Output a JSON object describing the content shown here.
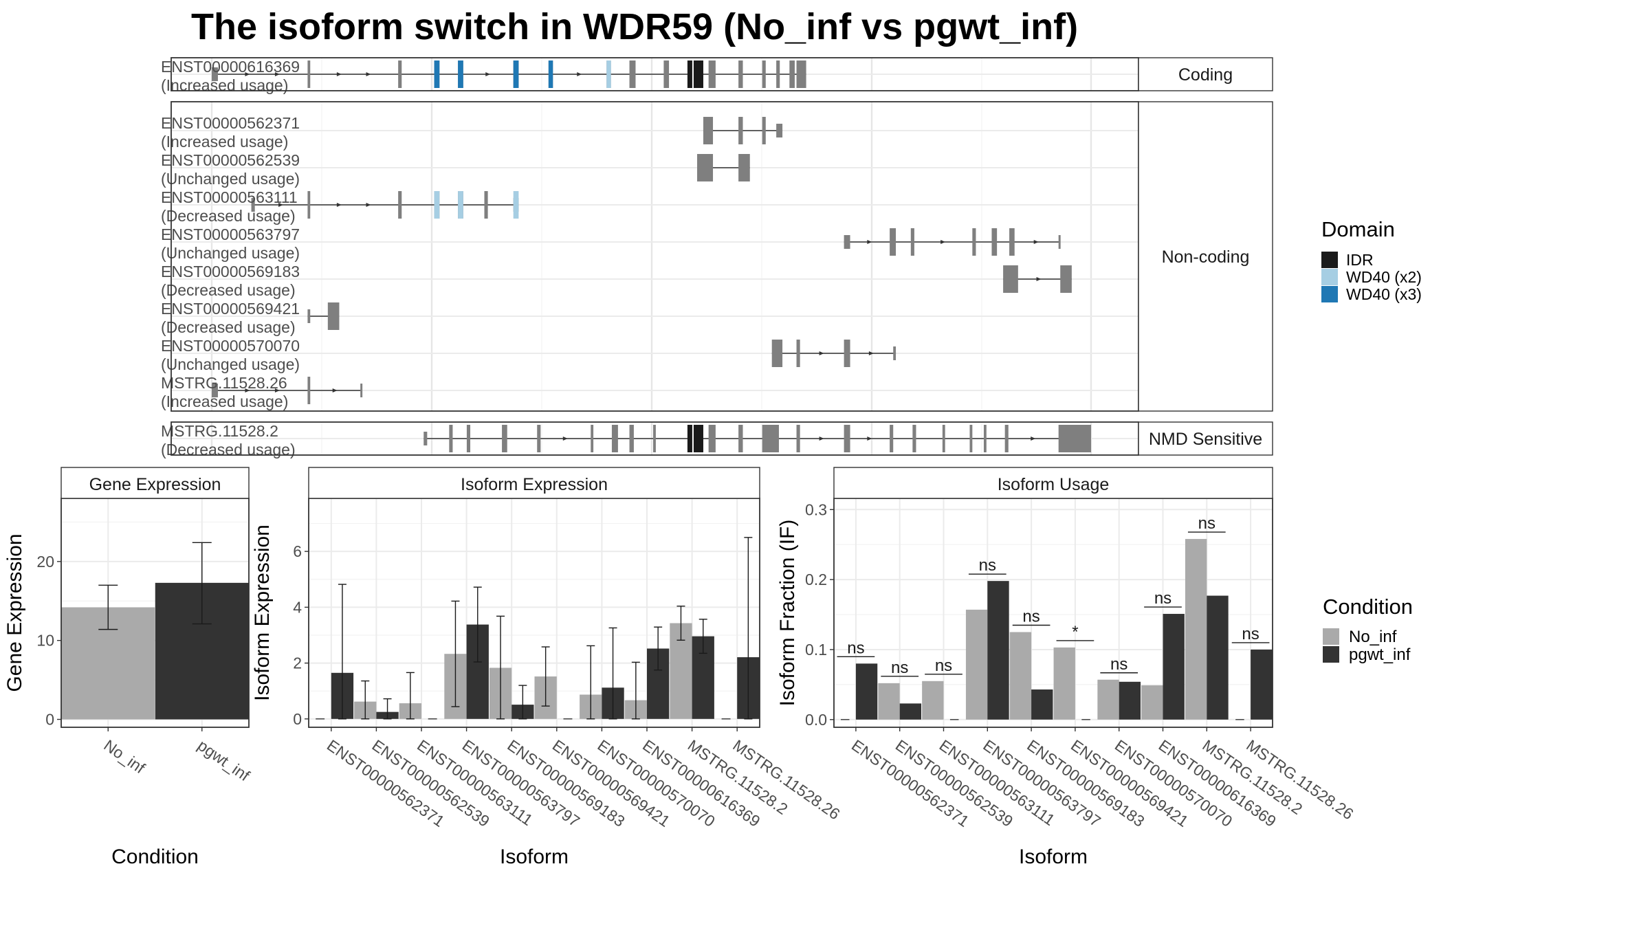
{
  "title": "The isoform switch in WDR59 (No_inf vs pgwt_inf)",
  "colors": {
    "exon": "#7f7f7f",
    "idr": "#1a1a1a",
    "wd40_x2": "#a6cee3",
    "wd40_x3": "#1f78b4",
    "no_inf": "#aaaaaa",
    "pgwt_inf": "#333333"
  },
  "structure": {
    "panels": [
      {
        "label": "Coding",
        "isoforms": [
          {
            "id": "ENST00000616369",
            "usage": "(Increased usage)",
            "start": 0.0,
            "end": 0.676,
            "exons": [
              [
                0.0,
                0.007
              ],
              [
                0.109,
                0.112
              ],
              [
                0.212,
                0.216
              ],
              [
                0.253,
                0.259
              ],
              [
                0.28,
                0.286
              ],
              [
                0.343,
                0.349
              ],
              [
                0.383,
                0.388
              ],
              [
                0.449,
                0.454
              ],
              [
                0.475,
                0.482
              ],
              [
                0.514,
                0.52
              ],
              [
                0.541,
                0.548
              ],
              [
                0.552,
                0.559
              ],
              [
                0.565,
                0.573
              ],
              [
                0.599,
                0.604
              ],
              [
                0.626,
                0.63
              ],
              [
                0.642,
                0.646
              ],
              [
                0.657,
                0.663
              ],
              [
                0.665,
                0.676
              ]
            ],
            "domains": [
              {
                "name": "WD40 (x3)",
                "spans": [
                  [
                    0.253,
                    0.259
                  ],
                  [
                    0.28,
                    0.286
                  ],
                  [
                    0.343,
                    0.349
                  ],
                  [
                    0.383,
                    0.388
                  ]
                ]
              },
              {
                "name": "WD40 (x2)",
                "spans": [
                  [
                    0.449,
                    0.454
                  ]
                ]
              },
              {
                "name": "IDR",
                "spans": [
                  [
                    0.541,
                    0.559
                  ]
                ]
              }
            ]
          }
        ]
      },
      {
        "label": "Non-coding",
        "isoforms": [
          {
            "id": "ENST00000562371",
            "usage": "(Increased usage)",
            "start": 0.559,
            "end": 0.649,
            "exons": [
              [
                0.559,
                0.57
              ],
              [
                0.599,
                0.604
              ],
              [
                0.626,
                0.63
              ],
              [
                0.642,
                0.649
              ]
            ],
            "domains": []
          },
          {
            "id": "ENST00000562539",
            "usage": "(Unchanged usage)",
            "start": 0.552,
            "end": 0.612,
            "exons": [
              [
                0.552,
                0.57
              ],
              [
                0.599,
                0.612
              ]
            ],
            "domains": []
          },
          {
            "id": "ENST00000563111",
            "usage": "(Decreased usage)",
            "start": 0.045,
            "end": 0.349,
            "exons": [
              [
                0.045,
                0.049
              ],
              [
                0.109,
                0.112
              ],
              [
                0.212,
                0.216
              ],
              [
                0.253,
                0.259
              ],
              [
                0.28,
                0.286
              ],
              [
                0.31,
                0.314
              ],
              [
                0.343,
                0.349
              ]
            ],
            "domains": [
              {
                "name": "WD40 (x2)",
                "spans": [
                  [
                    0.253,
                    0.259
                  ],
                  [
                    0.28,
                    0.286
                  ],
                  [
                    0.343,
                    0.349
                  ]
                ]
              }
            ]
          },
          {
            "id": "ENST00000563797",
            "usage": "(Unchanged usage)",
            "start": 0.719,
            "end": 0.965,
            "exons": [
              [
                0.719,
                0.726
              ],
              [
                0.771,
                0.778
              ],
              [
                0.795,
                0.799
              ],
              [
                0.865,
                0.869
              ],
              [
                0.887,
                0.893
              ],
              [
                0.907,
                0.913
              ],
              [
                0.963,
                0.965
              ]
            ],
            "domains": []
          },
          {
            "id": "ENST00000569183",
            "usage": "(Decreased usage)",
            "start": 0.9,
            "end": 0.978,
            "exons": [
              [
                0.9,
                0.917
              ],
              [
                0.965,
                0.978
              ]
            ],
            "domains": []
          },
          {
            "id": "ENST00000569421",
            "usage": "(Decreased usage)",
            "start": 0.109,
            "end": 0.145,
            "exons": [
              [
                0.109,
                0.112
              ],
              [
                0.132,
                0.145
              ]
            ],
            "domains": []
          },
          {
            "id": "ENST00000570070",
            "usage": "(Unchanged usage)",
            "start": 0.637,
            "end": 0.778,
            "exons": [
              [
                0.637,
                0.649
              ],
              [
                0.665,
                0.669
              ],
              [
                0.719,
                0.726
              ],
              [
                0.775,
                0.778
              ]
            ],
            "domains": []
          },
          {
            "id": "MSTRG.11528.26",
            "usage": "(Increased usage)",
            "start": 0.0,
            "end": 0.171,
            "exons": [
              [
                0.0,
                0.007
              ],
              [
                0.109,
                0.112
              ],
              [
                0.169,
                0.171
              ]
            ],
            "domains": []
          }
        ]
      },
      {
        "label": "NMD Sensitive",
        "isoforms": [
          {
            "id": "MSTRG.11528.2",
            "usage": "(Decreased usage)",
            "start": 0.241,
            "end": 1.0,
            "exons": [
              [
                0.241,
                0.245
              ],
              [
                0.27,
                0.274
              ],
              [
                0.29,
                0.294
              ],
              [
                0.33,
                0.336
              ],
              [
                0.37,
                0.374
              ],
              [
                0.431,
                0.434
              ],
              [
                0.455,
                0.462
              ],
              [
                0.475,
                0.48
              ],
              [
                0.502,
                0.505
              ],
              [
                0.541,
                0.559
              ],
              [
                0.565,
                0.573
              ],
              [
                0.599,
                0.604
              ],
              [
                0.626,
                0.645
              ],
              [
                0.665,
                0.669
              ],
              [
                0.719,
                0.726
              ],
              [
                0.771,
                0.775
              ],
              [
                0.797,
                0.801
              ],
              [
                0.831,
                0.834
              ],
              [
                0.862,
                0.865
              ],
              [
                0.878,
                0.881
              ],
              [
                0.902,
                0.906
              ],
              [
                0.963,
                1.0
              ]
            ],
            "domains": [
              {
                "name": "IDR",
                "spans": [
                  [
                    0.541,
                    0.559
                  ]
                ]
              }
            ]
          }
        ]
      }
    ],
    "legend": {
      "title": "Domain",
      "items": [
        {
          "label": "IDR",
          "color": "#1a1a1a"
        },
        {
          "label": "WD40 (x2)",
          "color": "#a6cee3"
        },
        {
          "label": "WD40 (x3)",
          "color": "#1f78b4"
        }
      ]
    }
  },
  "chart_data": [
    {
      "type": "bar",
      "title": "Gene Expression",
      "xlabel": "Condition",
      "ylabel": "Gene Expression",
      "categories": [
        "No_inf",
        "pgwt_inf"
      ],
      "values": [
        14.2,
        17.3
      ],
      "errors": [
        [
          11.4,
          17.0
        ],
        [
          12.1,
          22.4
        ]
      ],
      "colors": [
        "#aaaaaa",
        "#333333"
      ],
      "ylim": [
        -1,
        28
      ],
      "yticks": [
        0,
        10,
        20
      ],
      "grid": true
    },
    {
      "type": "bar",
      "title": "Isoform Expression",
      "xlabel": "Isoform",
      "ylabel": "Isoform Expression",
      "categories": [
        "ENST00000562371",
        "ENST00000562539",
        "ENST00000563111",
        "ENST00000563797",
        "ENST00000569183",
        "ENST00000569421",
        "ENST00000570070",
        "ENST00000616369",
        "MSTRG.11528.2",
        "MSTRG.11528.26"
      ],
      "series": [
        {
          "name": "No_inf",
          "values": [
            0.0,
            0.62,
            0.56,
            2.33,
            1.83,
            1.52,
            0.87,
            0.67,
            3.43,
            0.0
          ],
          "errors": [
            null,
            [
              0.0,
              1.36
            ],
            [
              0.0,
              1.66
            ],
            [
              0.44,
              4.22
            ],
            [
              0.0,
              3.68
            ],
            [
              0.46,
              2.58
            ],
            [
              0.0,
              2.62
            ],
            [
              0.0,
              2.03
            ],
            [
              2.82,
              4.04
            ],
            null
          ]
        },
        {
          "name": "pgwt_inf",
          "values": [
            1.65,
            0.25,
            0.0,
            3.38,
            0.51,
            0.0,
            1.12,
            2.52,
            2.96,
            2.21
          ],
          "errors": [
            [
              0.0,
              4.82
            ],
            [
              0.0,
              0.72
            ],
            null,
            [
              2.04,
              4.72
            ],
            [
              0.0,
              1.2
            ],
            null,
            [
              0.0,
              3.26
            ],
            [
              1.75,
              3.29
            ],
            [
              2.35,
              3.57
            ],
            [
              0.0,
              6.5
            ]
          ]
        }
      ],
      "ylim": [
        -0.3,
        7.9
      ],
      "yticks": [
        0,
        2,
        4,
        6
      ],
      "grid": true
    },
    {
      "type": "bar",
      "title": "Isoform Usage",
      "xlabel": "Isoform",
      "ylabel": "Isoform Fraction (IF)",
      "categories": [
        "ENST00000562371",
        "ENST00000562539",
        "ENST00000563111",
        "ENST00000563797",
        "ENST00000569183",
        "ENST00000569421",
        "ENST00000570070",
        "ENST00000616369",
        "MSTRG.11528.2",
        "MSTRG.11528.26"
      ],
      "series": [
        {
          "name": "No_inf",
          "values": [
            0.0,
            0.052,
            0.055,
            0.157,
            0.125,
            0.103,
            0.057,
            0.049,
            0.258,
            0.0
          ]
        },
        {
          "name": "pgwt_inf",
          "values": [
            0.08,
            0.023,
            0.0,
            0.198,
            0.043,
            0.0,
            0.054,
            0.151,
            0.177,
            0.1
          ]
        }
      ],
      "significance": [
        "ns",
        "ns",
        "ns",
        "ns",
        "ns",
        "*",
        "ns",
        "ns",
        "ns",
        "ns"
      ],
      "ylim": [
        -0.011,
        0.316
      ],
      "yticks": [
        "0.0",
        "0.1",
        "0.2",
        "0.3"
      ],
      "grid": true
    }
  ],
  "condition_legend": {
    "title": "Condition",
    "items": [
      {
        "label": "No_inf",
        "color": "#aaaaaa"
      },
      {
        "label": "pgwt_inf",
        "color": "#333333"
      }
    ]
  }
}
